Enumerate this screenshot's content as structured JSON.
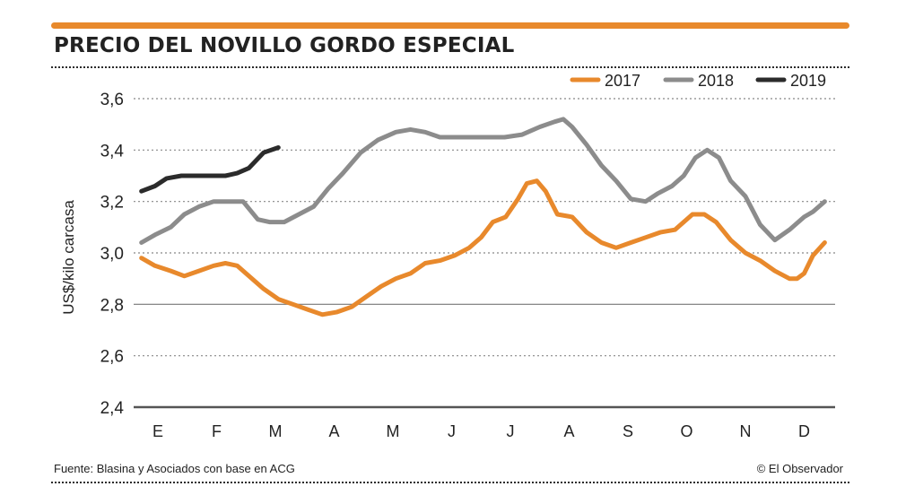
{
  "title": "PRECIO DEL NOVILLO GORDO ESPECIAL",
  "source": "Fuente: Blasina y Asociados con base en ACG",
  "credit": "© El Observador",
  "colors": {
    "accent": "#e8892c",
    "s2017": "#e8892c",
    "s2018": "#8c8c8c",
    "s2019": "#2b2b2b"
  },
  "chart_data": {
    "type": "line",
    "ylabel": "US$/kilo carcasa",
    "ylim": [
      2.4,
      3.6
    ],
    "yticks": [
      "2,4",
      "2,6",
      "2,8",
      "3,0",
      "3,2",
      "3,4",
      "3,6"
    ],
    "ytick_values": [
      2.4,
      2.6,
      2.8,
      3.0,
      3.2,
      3.4,
      3.6
    ],
    "months": [
      "E",
      "F",
      "M",
      "A",
      "M",
      "J",
      "J",
      "A",
      "S",
      "O",
      "N",
      "D"
    ],
    "x_note": "x values are month index, 0 = E (January) ... 11 = D (December)",
    "xlim": [
      -0.28,
      11.35
    ],
    "legend_position": "top-right",
    "grid": "dotted horizontal",
    "series": [
      {
        "name": "2017",
        "x": [
          -0.28,
          -0.05,
          0.22,
          0.45,
          0.7,
          0.95,
          1.15,
          1.35,
          1.55,
          1.8,
          2.05,
          2.3,
          2.55,
          2.8,
          3.05,
          3.3,
          3.55,
          3.8,
          4.05,
          4.3,
          4.55,
          4.8,
          5.05,
          5.3,
          5.5,
          5.7,
          5.92,
          6.13,
          6.28,
          6.45,
          6.6,
          6.8,
          7.05,
          7.3,
          7.55,
          7.8,
          8.05,
          8.3,
          8.55,
          8.8,
          8.95,
          9.1,
          9.3,
          9.5,
          9.75,
          10.0,
          10.25,
          10.5,
          10.75,
          10.88,
          11.0,
          11.15,
          11.35
        ],
        "values": [
          2.98,
          2.95,
          2.93,
          2.91,
          2.93,
          2.95,
          2.96,
          2.95,
          2.91,
          2.86,
          2.82,
          2.8,
          2.78,
          2.76,
          2.77,
          2.79,
          2.83,
          2.87,
          2.9,
          2.92,
          2.96,
          2.97,
          2.99,
          3.02,
          3.06,
          3.12,
          3.14,
          3.21,
          3.27,
          3.28,
          3.24,
          3.15,
          3.14,
          3.08,
          3.04,
          3.02,
          3.04,
          3.06,
          3.08,
          3.09,
          3.12,
          3.15,
          3.15,
          3.12,
          3.05,
          3.0,
          2.97,
          2.93,
          2.9,
          2.9,
          2.92,
          2.99,
          3.04
        ]
      },
      {
        "name": "2018",
        "x": [
          -0.28,
          -0.05,
          0.22,
          0.45,
          0.7,
          0.95,
          1.2,
          1.45,
          1.7,
          1.9,
          2.15,
          2.4,
          2.65,
          2.9,
          3.15,
          3.45,
          3.75,
          4.05,
          4.3,
          4.55,
          4.8,
          5.05,
          5.3,
          5.6,
          5.9,
          6.2,
          6.5,
          6.75,
          6.9,
          7.05,
          7.3,
          7.55,
          7.8,
          8.05,
          8.3,
          8.5,
          8.75,
          8.95,
          9.15,
          9.35,
          9.55,
          9.75,
          10.0,
          10.25,
          10.5,
          10.75,
          11.0,
          11.15,
          11.35
        ],
        "values": [
          3.04,
          3.07,
          3.1,
          3.15,
          3.18,
          3.2,
          3.2,
          3.2,
          3.13,
          3.12,
          3.12,
          3.15,
          3.18,
          3.25,
          3.31,
          3.39,
          3.44,
          3.47,
          3.48,
          3.47,
          3.45,
          3.45,
          3.45,
          3.45,
          3.45,
          3.46,
          3.49,
          3.51,
          3.52,
          3.49,
          3.42,
          3.34,
          3.28,
          3.21,
          3.2,
          3.23,
          3.26,
          3.3,
          3.37,
          3.4,
          3.37,
          3.28,
          3.22,
          3.11,
          3.05,
          3.09,
          3.14,
          3.16,
          3.2
        ]
      },
      {
        "name": "2019",
        "x": [
          -0.28,
          -0.05,
          0.15,
          0.4,
          0.7,
          0.95,
          1.15,
          1.35,
          1.55,
          1.8,
          2.05
        ],
        "values": [
          3.24,
          3.26,
          3.29,
          3.3,
          3.3,
          3.3,
          3.3,
          3.31,
          3.33,
          3.39,
          3.41
        ]
      }
    ]
  }
}
